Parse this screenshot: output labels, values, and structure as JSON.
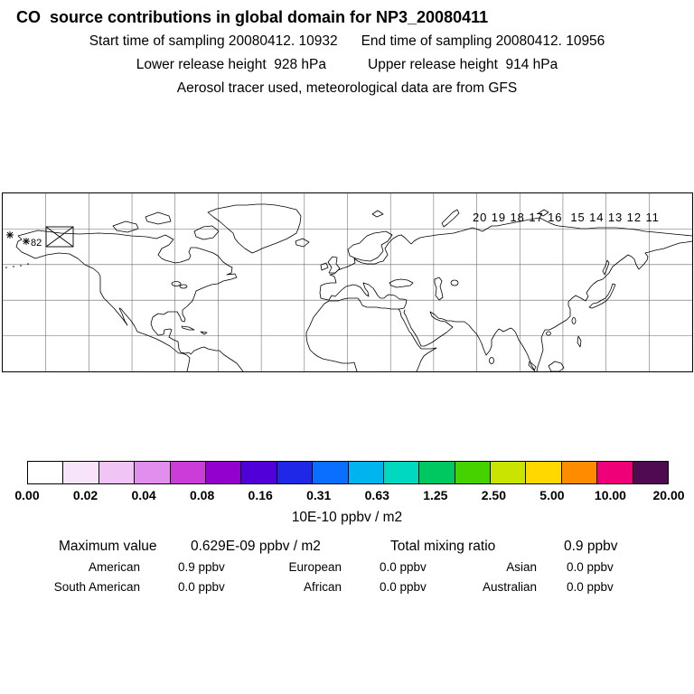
{
  "header": {
    "title": "CO  source contributions in global domain for NP3_20080411",
    "start_time": "Start time of sampling 20080412. 10932",
    "end_time": "End time of sampling 20080412. 10956",
    "lower_release": "Lower release height  928 hPa",
    "upper_release": "Upper release height  914 hPa",
    "tracer_line": "Aerosol tracer used, meteorological data are from GFS"
  },
  "map": {
    "flight_track_labels": "20 19 18 17 16  15 14 13 12 11",
    "station_label": "82"
  },
  "colorbar": {
    "colors": [
      "#ffffff",
      "#f8e4fa",
      "#f0c4f4",
      "#e090ec",
      "#cc3cd8",
      "#9400cc",
      "#5000d8",
      "#2028e8",
      "#0a6eff",
      "#00b4f0",
      "#00d8c0",
      "#00c860",
      "#46d200",
      "#c8e400",
      "#ffd800",
      "#ff8c00",
      "#f00078",
      "#500a50"
    ],
    "tick_labels": [
      "0.00",
      "0.02",
      "0.04",
      "0.08",
      "0.16",
      "0.31",
      "0.63",
      "1.25",
      "2.50",
      "5.00",
      "10.00",
      "20.00"
    ],
    "unit": "10E-10 ppbv / m2"
  },
  "stats": {
    "maximum_label": "Maximum value",
    "maximum_value": "0.629E-09 ppbv / m2",
    "total_label": "Total mixing ratio",
    "total_value": "0.9 ppbv",
    "contributions": [
      {
        "label": "American",
        "value": "0.9 ppbv"
      },
      {
        "label": "European",
        "value": "0.0 ppbv"
      },
      {
        "label": "Asian",
        "value": "0.0 ppbv"
      },
      {
        "label": "South American",
        "value": "0.0 ppbv"
      },
      {
        "label": "African",
        "value": "0.0 ppbv"
      },
      {
        "label": "Australian",
        "value": "0.0 ppbv"
      }
    ]
  },
  "chart_data": {
    "type": "heatmap",
    "title": "CO source contributions in global domain for NP3_20080411",
    "projection": "equirectangular world map, global domain, northern hemisphere shown",
    "colorbar": {
      "unit": "10E-10 ppbv / m2",
      "boundaries": [
        0.0,
        0.02,
        0.04,
        0.08,
        0.16,
        0.31,
        0.63,
        1.25,
        2.5,
        5.0,
        10.0,
        20.0
      ],
      "orientation": "horizontal"
    },
    "maximum_value": "0.629E-09 ppbv / m2",
    "total_mixing_ratio_ppbv": 0.9,
    "source_contributions_ppbv": {
      "American": 0.9,
      "European": 0.0,
      "Asian": 0.0,
      "South American": 0.0,
      "African": 0.0,
      "Australian": 0.0
    },
    "flight_track_hour_labels": [
      20,
      19,
      18,
      17,
      16,
      15,
      14,
      13,
      12,
      11
    ],
    "sampling": {
      "start": "20080412. 10932",
      "end": "20080412. 10956",
      "lower_release_height_hPa": 928,
      "upper_release_height_hPa": 914,
      "tracer": "Aerosol",
      "meteorology": "GFS"
    }
  }
}
